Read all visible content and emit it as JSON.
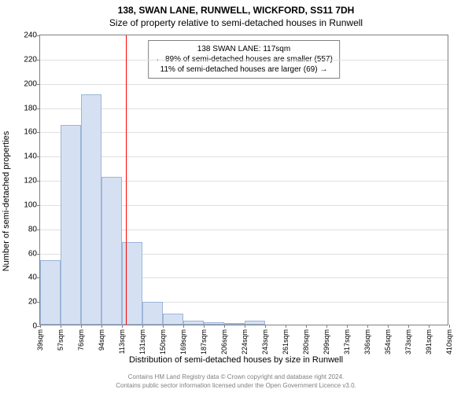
{
  "title": "138, SWAN LANE, RUNWELL, WICKFORD, SS11 7DH",
  "subtitle": "Size of property relative to semi-detached houses in Runwell",
  "ylabel": "Number of semi-detached properties",
  "xlabel": "Distribution of semi-detached houses by size in Runwell",
  "chart": {
    "type": "histogram",
    "ylim": [
      0,
      240
    ],
    "ytick_step": 20,
    "background_color": "#ffffff",
    "grid_color": "#e0e0e0",
    "bar_color": "#d5e1f2",
    "bar_border_color": "#9db5d8",
    "redline_color": "#ff0000",
    "redline_x": 117,
    "x_start": 39,
    "x_step": 18.6,
    "xtick_labels": [
      "39sqm",
      "57sqm",
      "76sqm",
      "94sqm",
      "113sqm",
      "131sqm",
      "150sqm",
      "169sqm",
      "187sqm",
      "206sqm",
      "224sqm",
      "243sqm",
      "261sqm",
      "280sqm",
      "299sqm",
      "317sqm",
      "336sqm",
      "354sqm",
      "373sqm",
      "391sqm",
      "410sqm"
    ],
    "values": [
      53,
      165,
      190,
      122,
      68,
      19,
      9,
      3,
      2,
      1,
      3
    ]
  },
  "annotation": {
    "line1": "138 SWAN LANE: 117sqm",
    "line2": "← 89% of semi-detached houses are smaller (557)",
    "line3": "11% of semi-detached houses are larger (69) →"
  },
  "attribution": {
    "line1": "Contains HM Land Registry data © Crown copyright and database right 2024.",
    "line2": "Contains public sector information licensed under the Open Government Licence v3.0."
  }
}
